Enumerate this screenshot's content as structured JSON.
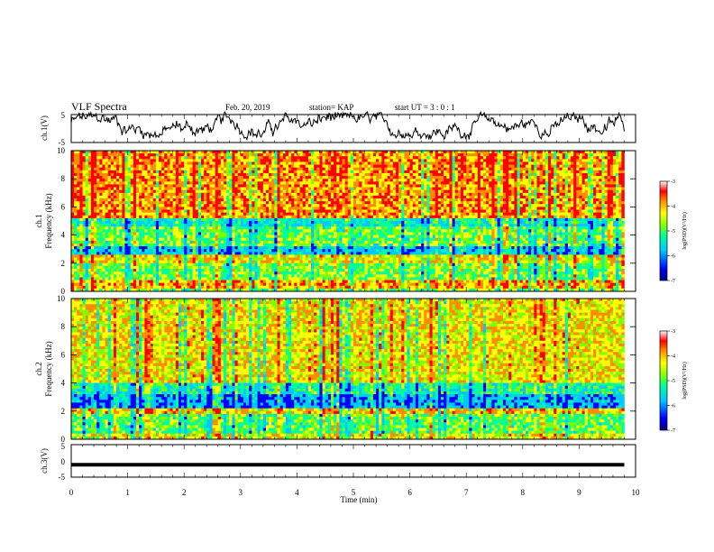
{
  "header": {
    "title": "VLF Spectra",
    "date": "Feb. 20, 2019",
    "station": "station= KAP",
    "start": "start  UT =   3 : 0  : 1"
  },
  "colors": {
    "ch1_trace": "#000000",
    "ch3_trace": "#000000",
    "colormap": [
      "#000080",
      "#0000ff",
      "#00c8ff",
      "#00ff9a",
      "#7fff00",
      "#ffff00",
      "#ff8c00",
      "#ff0000",
      "#ffffff"
    ]
  },
  "chart_data": [
    {
      "type": "line",
      "panel": "ch1",
      "ylabel": "ch.1(V)",
      "yticks": [
        "5",
        "-5"
      ],
      "ylim": [
        -5,
        5
      ],
      "xlim": [
        0,
        10
      ],
      "x_extent_min": 9.8,
      "description_values": "noisy waveform fluctuating roughly between -3 and 5 V"
    },
    {
      "type": "heatmap",
      "panel": "ch1-spectrogram",
      "ylabel": "ch.1",
      "ylabel2": "Frequency (kHz)",
      "yticks": [
        "0",
        "2",
        "4",
        "6",
        "8",
        "10"
      ],
      "ylim": [
        0,
        10
      ],
      "xlim": [
        0,
        10
      ],
      "colorbar": {
        "label": "log(PSD)(V²/Hz)",
        "ticks": [
          "-3",
          "-4",
          "-5",
          "-6",
          "-7"
        ],
        "range": [
          -7,
          -3
        ]
      },
      "bands_khz": [
        {
          "from": 0.0,
          "to": 0.3,
          "level": -5.0
        },
        {
          "from": 0.3,
          "to": 0.8,
          "level": -4.2
        },
        {
          "from": 0.8,
          "to": 1.9,
          "level": -5.1
        },
        {
          "from": 1.9,
          "to": 2.7,
          "level": -4.5
        },
        {
          "from": 2.7,
          "to": 3.3,
          "level": -6.1
        },
        {
          "from": 3.3,
          "to": 4.6,
          "level": -5.2
        },
        {
          "from": 4.6,
          "to": 5.2,
          "level": -5.7
        },
        {
          "from": 5.2,
          "to": 10.0,
          "level": -4.1
        }
      ]
    },
    {
      "type": "heatmap",
      "panel": "ch2-spectrogram",
      "ylabel": "ch.2",
      "ylabel2": "Frequency (kHz)",
      "yticks": [
        "0",
        "2",
        "4",
        "6",
        "8",
        "10"
      ],
      "ylim": [
        0,
        10
      ],
      "xlim": [
        0,
        10
      ],
      "colorbar": {
        "label": "log(PSD)(V²/Hz)",
        "ticks": [
          "-3",
          "-4",
          "-5",
          "-6",
          "-7"
        ],
        "range": [
          -7,
          -3
        ]
      },
      "bands_khz": [
        {
          "from": 0.0,
          "to": 0.4,
          "level": -4.6
        },
        {
          "from": 0.4,
          "to": 1.8,
          "level": -5.2
        },
        {
          "from": 1.8,
          "to": 2.1,
          "level": -4.3
        },
        {
          "from": 2.1,
          "to": 3.2,
          "level": -6.3
        },
        {
          "from": 3.2,
          "to": 4.0,
          "level": -5.6
        },
        {
          "from": 4.0,
          "to": 10.0,
          "level": -4.5
        }
      ]
    },
    {
      "type": "line",
      "panel": "ch3",
      "ylabel": "ch.3(V)",
      "yticks": [
        "5",
        "0",
        "-5"
      ],
      "ylim": [
        -5,
        5
      ],
      "xlim": [
        0,
        10
      ],
      "constant_value": -1.2,
      "xlabel": "Time (min)",
      "xticks": [
        "0",
        "1",
        "2",
        "3",
        "4",
        "5",
        "6",
        "7",
        "8",
        "9",
        "10"
      ]
    }
  ]
}
